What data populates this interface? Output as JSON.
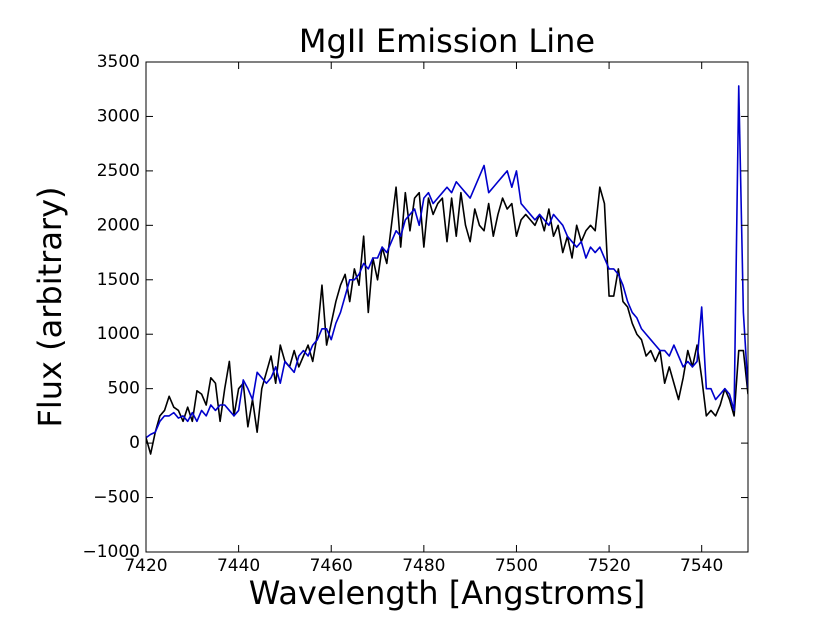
{
  "chart_data": {
    "type": "line",
    "title": "MgII Emission Line",
    "x_label": "Wavelength [Angstroms]",
    "y_label": "Flux (arbitrary)",
    "x": [
      7420,
      7421,
      7422,
      7423,
      7424,
      7425,
      7426,
      7427,
      7428,
      7429,
      7430,
      7431,
      7432,
      7433,
      7434,
      7435,
      7436,
      7437,
      7438,
      7439,
      7440,
      7441,
      7442,
      7443,
      7444,
      7445,
      7446,
      7447,
      7448,
      7449,
      7450,
      7451,
      7452,
      7453,
      7454,
      7455,
      7456,
      7457,
      7458,
      7459,
      7460,
      7461,
      7462,
      7463,
      7464,
      7465,
      7466,
      7467,
      7468,
      7469,
      7470,
      7471,
      7472,
      7473,
      7474,
      7475,
      7476,
      7477,
      7478,
      7479,
      7480,
      7481,
      7482,
      7483,
      7484,
      7485,
      7486,
      7487,
      7488,
      7489,
      7490,
      7491,
      7492,
      7493,
      7494,
      7495,
      7496,
      7497,
      7498,
      7499,
      7500,
      7501,
      7502,
      7503,
      7504,
      7505,
      7506,
      7507,
      7508,
      7509,
      7510,
      7511,
      7512,
      7513,
      7514,
      7515,
      7516,
      7517,
      7518,
      7519,
      7520,
      7521,
      7522,
      7523,
      7524,
      7525,
      7526,
      7527,
      7528,
      7529,
      7530,
      7531,
      7532,
      7533,
      7534,
      7535,
      7536,
      7537,
      7538,
      7539,
      7540,
      7541,
      7542,
      7543,
      7544,
      7545,
      7546,
      7547,
      7548,
      7549,
      7550
    ],
    "series": [
      {
        "color": "#000000",
        "values": [
          50,
          -100,
          100,
          250,
          300,
          430,
          330,
          300,
          200,
          330,
          200,
          480,
          450,
          350,
          600,
          550,
          200,
          500,
          750,
          250,
          500,
          550,
          150,
          400,
          100,
          500,
          650,
          800,
          550,
          900,
          750,
          700,
          850,
          700,
          800,
          900,
          750,
          1000,
          1450,
          900,
          1100,
          1300,
          1450,
          1550,
          1300,
          1600,
          1450,
          1900,
          1200,
          1700,
          1500,
          1800,
          1650,
          2000,
          2350,
          1800,
          2300,
          1950,
          2250,
          2300,
          1800,
          2250,
          2100,
          2200,
          2250,
          1850,
          2250,
          1900,
          2300,
          2000,
          1850,
          2150,
          2000,
          1950,
          2200,
          1900,
          2100,
          2250,
          2150,
          2200,
          1900,
          2050,
          2100,
          2050,
          2000,
          2100,
          1950,
          2150,
          1900,
          2000,
          1750,
          1900,
          1700,
          2000,
          1850,
          1950,
          2000,
          1950,
          2350,
          2200,
          1350,
          1350,
          1600,
          1300,
          1250,
          1100,
          1000,
          950,
          800,
          850,
          750,
          850,
          550,
          700,
          550,
          400,
          600,
          850,
          700,
          900,
          600,
          250,
          300,
          250,
          350,
          500,
          400,
          250,
          850,
          850,
          450
        ]
      },
      {
        "color": "#0000cc",
        "values": [
          50,
          80,
          100,
          200,
          250,
          250,
          280,
          230,
          250,
          200,
          280,
          200,
          300,
          250,
          350,
          300,
          350,
          350,
          300,
          250,
          300,
          580,
          500,
          400,
          650,
          600,
          550,
          600,
          700,
          550,
          750,
          700,
          650,
          800,
          850,
          800,
          900,
          950,
          1050,
          1050,
          950,
          1100,
          1200,
          1350,
          1500,
          1500,
          1550,
          1650,
          1600,
          1700,
          1700,
          1800,
          1750,
          1850,
          1950,
          1900,
          2050,
          2100,
          2150,
          2000,
          2250,
          2300,
          2200,
          2250,
          2300,
          2350,
          2300,
          2400,
          2350,
          2300,
          2250,
          2350,
          2450,
          2550,
          2300,
          2350,
          2400,
          2450,
          2500,
          2350,
          2500,
          2200,
          2150,
          2100,
          2050,
          2100,
          2050,
          2000,
          2100,
          2050,
          2000,
          1900,
          1850,
          1800,
          1850,
          1700,
          1800,
          1750,
          1800,
          1700,
          1600,
          1600,
          1550,
          1450,
          1300,
          1200,
          1150,
          1050,
          1000,
          950,
          900,
          850,
          850,
          800,
          900,
          800,
          700,
          750,
          700,
          750,
          1250,
          500,
          500,
          400,
          450,
          500,
          450,
          300,
          3280,
          1200,
          500
        ]
      }
    ],
    "xlim": [
      7420,
      7550
    ],
    "xticks": [
      7420,
      7440,
      7460,
      7480,
      7500,
      7520,
      7540
    ],
    "ylim": [
      -1000,
      3500
    ],
    "yticks": [
      {
        "value": -1000,
        "label": "−1000"
      },
      {
        "value": -500,
        "label": "−500"
      },
      0,
      500,
      1000,
      1500,
      2000,
      2500,
      3000,
      3500
    ]
  }
}
